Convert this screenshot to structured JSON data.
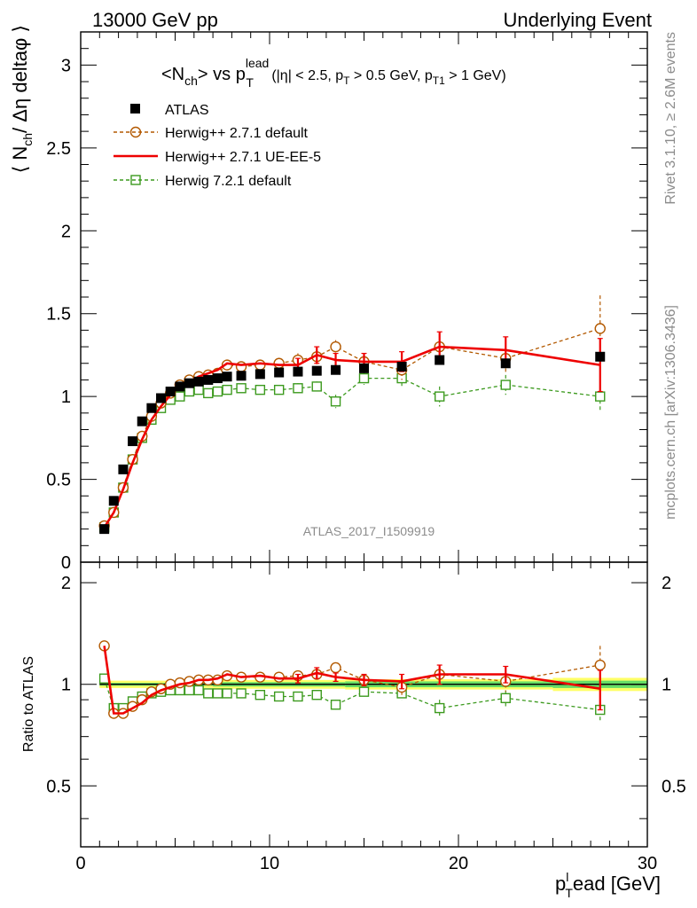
{
  "header": {
    "left": "13000 GeV pp",
    "right": "Underlying Event"
  },
  "side_labels": {
    "top": "Rivet 3.1.10, ≥ 2.6M events",
    "bottom": "mcplots.cern.ch [arXiv:1306.3436]"
  },
  "watermark": "ATLAS_2017_I1509919",
  "colors": {
    "atlas": "#000000",
    "herwig271_default": "#b35900",
    "herwig271_ueee5": "#ee0000",
    "herwig721_default": "#3c9a1e",
    "band_inner": "#66dd66",
    "band_outer": "#ffff66"
  },
  "chart_data": [
    {
      "type": "scatter",
      "panel": "main",
      "title": {
        "main": "<N",
        "main_sub": "ch",
        "mid": "> vs p",
        "pt_sup": "lead",
        "pt_sub": "T",
        "cuts_a": " (|η| < 2.5, p",
        "cuts_sub1": "T",
        "cuts_b": " > 0.5 GeV, p",
        "cuts_sub2": "T1",
        "cuts_c": " > 1 GeV)"
      },
      "ylabel": {
        "a": "⟨ N",
        "sub": "ch",
        "b": "/ Δη deltaφ ⟩"
      },
      "xlim": [
        0,
        30
      ],
      "ylim": [
        0,
        3.2
      ],
      "yticks": [
        0,
        0.5,
        1,
        1.5,
        2,
        2.5,
        3
      ],
      "ytick_labels": [
        "0",
        "0.5",
        "1",
        "1.5",
        "2",
        "2.5",
        "3"
      ],
      "legend_placement": "top-left",
      "series": [
        {
          "name": "ATLAS",
          "x": [
            1.25,
            1.75,
            2.25,
            2.75,
            3.25,
            3.75,
            4.25,
            4.75,
            5.25,
            5.75,
            6.25,
            6.75,
            7.25,
            7.75,
            8.5,
            9.5,
            10.5,
            11.5,
            12.5,
            13.5,
            15.0,
            17.0,
            19.0,
            22.5,
            27.5
          ],
          "y": [
            0.2,
            0.37,
            0.56,
            0.73,
            0.85,
            0.93,
            0.99,
            1.03,
            1.06,
            1.08,
            1.09,
            1.1,
            1.11,
            1.12,
            1.125,
            1.135,
            1.145,
            1.15,
            1.155,
            1.16,
            1.17,
            1.18,
            1.22,
            1.2,
            1.24
          ]
        },
        {
          "name": "Herwig++ 2.7.1 default",
          "x": [
            1.25,
            1.75,
            2.25,
            2.75,
            3.25,
            3.75,
            4.25,
            4.75,
            5.25,
            5.75,
            6.25,
            6.75,
            7.25,
            7.75,
            8.5,
            9.5,
            10.5,
            11.5,
            12.5,
            13.5,
            15.0,
            17.0,
            19.0,
            22.5,
            27.5
          ],
          "y": [
            0.22,
            0.3,
            0.45,
            0.62,
            0.76,
            0.88,
            0.96,
            1.02,
            1.07,
            1.1,
            1.12,
            1.13,
            1.14,
            1.19,
            1.18,
            1.19,
            1.2,
            1.22,
            1.24,
            1.3,
            1.21,
            1.16,
            1.3,
            1.23,
            1.41
          ],
          "yerr": [
            0,
            0,
            0,
            0,
            0,
            0,
            0,
            0,
            0,
            0,
            0,
            0,
            0,
            0,
            0,
            0,
            0,
            0.04,
            0.05,
            0.04,
            0.05,
            0.06,
            0.08,
            0.09,
            0.2
          ]
        },
        {
          "name": "Herwig++ 2.7.1 UE-EE-5",
          "x": [
            1.25,
            1.75,
            2.25,
            2.75,
            3.25,
            3.75,
            4.25,
            4.75,
            5.25,
            5.75,
            6.25,
            6.75,
            7.25,
            7.75,
            8.5,
            9.5,
            10.5,
            11.5,
            12.5,
            13.5,
            15.0,
            17.0,
            19.0,
            22.5,
            27.5
          ],
          "y": [
            0.21,
            0.3,
            0.44,
            0.6,
            0.74,
            0.86,
            0.94,
            1.01,
            1.06,
            1.09,
            1.12,
            1.14,
            1.16,
            1.2,
            1.19,
            1.2,
            1.19,
            1.19,
            1.25,
            1.22,
            1.21,
            1.21,
            1.3,
            1.28,
            1.19
          ],
          "yerr": [
            0,
            0,
            0,
            0,
            0,
            0,
            0,
            0,
            0,
            0,
            0,
            0,
            0,
            0,
            0,
            0,
            0,
            0.04,
            0.05,
            0.04,
            0.05,
            0.06,
            0.09,
            0.08,
            0.16
          ]
        },
        {
          "name": "Herwig 7.2.1 default",
          "x": [
            1.25,
            1.75,
            2.25,
            2.75,
            3.25,
            3.75,
            4.25,
            4.75,
            5.25,
            5.75,
            6.25,
            6.75,
            7.25,
            7.75,
            8.5,
            9.5,
            10.5,
            11.5,
            12.5,
            13.5,
            15.0,
            17.0,
            19.0,
            22.5,
            27.5
          ],
          "y": [
            0.21,
            0.3,
            0.45,
            0.62,
            0.75,
            0.86,
            0.93,
            0.98,
            1.0,
            1.03,
            1.04,
            1.02,
            1.03,
            1.04,
            1.05,
            1.04,
            1.04,
            1.05,
            1.06,
            0.97,
            1.11,
            1.11,
            1.0,
            1.07,
            1.0
          ],
          "yerr": [
            0,
            0,
            0,
            0,
            0,
            0,
            0,
            0,
            0,
            0,
            0,
            0,
            0,
            0,
            0,
            0,
            0,
            0.03,
            0.03,
            0.04,
            0.04,
            0.05,
            0.06,
            0.06,
            0.09
          ]
        }
      ]
    },
    {
      "type": "scatter",
      "panel": "ratio",
      "ylabel": "Ratio to ATLAS",
      "xlabel": {
        "a": "p",
        "sup": "l",
        "sub": "T",
        "b": "ead [GeV]"
      },
      "xlim": [
        0,
        30
      ],
      "ylim": [
        0.33,
        2.3
      ],
      "xticks": [
        0,
        10,
        20,
        30
      ],
      "xtick_labels": [
        "0",
        "10",
        "20",
        "30"
      ],
      "yticks": [
        0.5,
        1,
        2
      ],
      "ytick_labels": [
        "0.5",
        "1",
        "2"
      ],
      "reference_line": 1,
      "band_inner": [
        {
          "x0": 1.0,
          "x1": 7.0,
          "lo": 0.99,
          "hi": 1.01
        },
        {
          "x0": 7.0,
          "x1": 14.0,
          "lo": 0.985,
          "hi": 1.015
        },
        {
          "x0": 14.0,
          "x1": 25.0,
          "lo": 0.98,
          "hi": 1.02
        },
        {
          "x0": 25.0,
          "x1": 30.0,
          "lo": 0.975,
          "hi": 1.025
        }
      ],
      "band_outer": [
        {
          "x0": 1.0,
          "x1": 7.0,
          "lo": 0.975,
          "hi": 1.025
        },
        {
          "x0": 7.0,
          "x1": 14.0,
          "lo": 0.97,
          "hi": 1.03
        },
        {
          "x0": 14.0,
          "x1": 25.0,
          "lo": 0.965,
          "hi": 1.035
        },
        {
          "x0": 25.0,
          "x1": 30.0,
          "lo": 0.955,
          "hi": 1.045
        }
      ],
      "series": [
        {
          "name": "Herwig++ 2.7.1 default",
          "x": [
            1.25,
            1.75,
            2.25,
            2.75,
            3.25,
            3.75,
            4.25,
            4.75,
            5.25,
            5.75,
            6.25,
            6.75,
            7.25,
            7.75,
            8.5,
            9.5,
            10.5,
            11.5,
            12.5,
            13.5,
            15.0,
            17.0,
            19.0,
            22.5,
            27.5
          ],
          "y": [
            1.3,
            0.82,
            0.82,
            0.86,
            0.9,
            0.95,
            0.97,
            1.0,
            1.01,
            1.02,
            1.03,
            1.03,
            1.03,
            1.06,
            1.05,
            1.05,
            1.05,
            1.06,
            1.07,
            1.12,
            1.03,
            0.98,
            1.07,
            1.02,
            1.14
          ],
          "yerr": [
            0,
            0,
            0,
            0,
            0,
            0,
            0,
            0,
            0,
            0,
            0,
            0,
            0,
            0,
            0,
            0,
            0,
            0.03,
            0.04,
            0.03,
            0.04,
            0.05,
            0.06,
            0.07,
            0.16
          ]
        },
        {
          "name": "Herwig++ 2.7.1 UE-EE-5",
          "x": [
            1.25,
            1.75,
            2.25,
            2.75,
            3.25,
            3.75,
            4.25,
            4.75,
            5.25,
            5.75,
            6.25,
            6.75,
            7.25,
            7.75,
            8.5,
            9.5,
            10.5,
            11.5,
            12.5,
            13.5,
            15.0,
            17.0,
            19.0,
            22.5,
            27.5
          ],
          "y": [
            1.3,
            0.82,
            0.82,
            0.85,
            0.88,
            0.93,
            0.96,
            0.98,
            1.0,
            1.01,
            1.03,
            1.03,
            1.04,
            1.07,
            1.05,
            1.06,
            1.04,
            1.04,
            1.08,
            1.05,
            1.03,
            1.02,
            1.07,
            1.07,
            0.97
          ],
          "yerr": [
            0,
            0,
            0,
            0,
            0,
            0,
            0,
            0,
            0,
            0,
            0,
            0,
            0,
            0,
            0,
            0,
            0,
            0.03,
            0.04,
            0.03,
            0.04,
            0.05,
            0.07,
            0.06,
            0.13
          ]
        },
        {
          "name": "Herwig 7.2.1 default",
          "x": [
            1.25,
            1.75,
            2.25,
            2.75,
            3.25,
            3.75,
            4.25,
            4.75,
            5.25,
            5.75,
            6.25,
            6.75,
            7.25,
            7.75,
            8.5,
            9.5,
            10.5,
            11.5,
            12.5,
            13.5,
            15.0,
            17.0,
            19.0,
            22.5,
            27.5
          ],
          "y": [
            1.04,
            0.85,
            0.85,
            0.89,
            0.92,
            0.94,
            0.95,
            0.96,
            0.96,
            0.96,
            0.96,
            0.94,
            0.94,
            0.94,
            0.94,
            0.93,
            0.92,
            0.92,
            0.93,
            0.87,
            0.95,
            0.94,
            0.85,
            0.91,
            0.84
          ],
          "yerr": [
            0,
            0,
            0,
            0,
            0,
            0,
            0,
            0,
            0,
            0,
            0,
            0,
            0,
            0,
            0,
            0,
            0,
            0.02,
            0.03,
            0.03,
            0.03,
            0.04,
            0.05,
            0.05,
            0.07
          ]
        }
      ]
    }
  ]
}
